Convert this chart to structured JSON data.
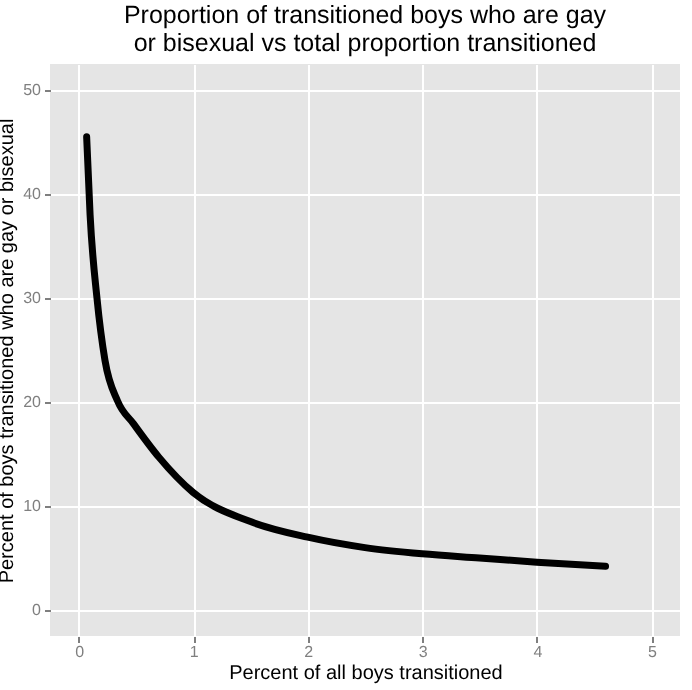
{
  "chart_data": {
    "type": "line",
    "title": "Proportion of transitioned boys who are gay\nor bisexual vs total proportion transitioned",
    "xlabel": "Percent of all boys transitioned",
    "ylabel": "Percent of boys transitioned who are gay or bisexual",
    "x": [
      0.07,
      0.1,
      0.16,
      0.23,
      0.34,
      0.48,
      0.7,
      1,
      1.5,
      2,
      2.5,
      3,
      3.5,
      4,
      4.6
    ],
    "series": [
      {
        "color": "#000000",
        "values": [
          45.5,
          38,
          30,
          24,
          20.1,
          17.9,
          14.7,
          11.3,
          8.5,
          7,
          6,
          5.4,
          5,
          4.6,
          4.2
        ]
      }
    ],
    "xlim": [
      -0.25,
      5.25
    ],
    "xticks": [
      0,
      1,
      2,
      3,
      4,
      5
    ],
    "ylim": [
      -2.5,
      52.5
    ],
    "yticks": [
      0,
      10,
      20,
      30,
      40,
      50
    ],
    "grid": true,
    "marker": "none",
    "line_style": "solid"
  }
}
